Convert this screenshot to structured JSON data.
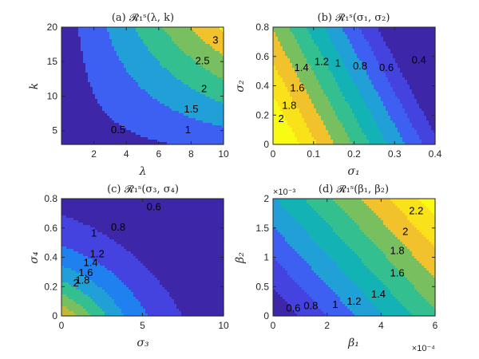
{
  "colors": {
    "colormap": [
      "#3e26a8",
      "#4443e0",
      "#3d5ff2",
      "#1f80f0",
      "#21a0d7",
      "#13b2b5",
      "#33bf90",
      "#78c05f",
      "#c2b93b",
      "#f2c22c",
      "#f9e21a",
      "#f9fb15"
    ],
    "axis": "#262626",
    "contour_line": "#000000"
  },
  "chart_data": [
    {
      "type": "heatmap",
      "panel": "a",
      "title": "(a) 𝓡₁ˢ(λ, k)",
      "xlabel": "λ",
      "ylabel": "k",
      "xlim": [
        0,
        10
      ],
      "ylim": [
        3,
        20
      ],
      "xticks": [
        2,
        4,
        6,
        8,
        10
      ],
      "yticks": [
        5,
        10,
        15,
        20
      ],
      "x_exponent": "",
      "y_exponent": "",
      "levels": [
        0.5,
        1,
        1.5,
        2,
        2.5,
        3
      ],
      "contour_labels": [
        {
          "text": "0.5",
          "x": 3.5,
          "y": 5.0
        },
        {
          "text": "1",
          "x": 7.8,
          "y": 5.0
        },
        {
          "text": "1.5",
          "x": 8.0,
          "y": 8.0
        },
        {
          "text": "2",
          "x": 8.8,
          "y": 11.0
        },
        {
          "text": "2.5",
          "x": 8.7,
          "y": 15.0
        },
        {
          "text": "3",
          "x": 9.5,
          "y": 18.0
        }
      ]
    },
    {
      "type": "heatmap",
      "panel": "b",
      "title": "(b) 𝓡₁ˢ(σ₁, σ₂)",
      "xlabel": "σ₁",
      "ylabel": "σ₂",
      "xlim": [
        0,
        0.4
      ],
      "ylim": [
        0,
        0.8
      ],
      "xticks": [
        0,
        0.1,
        0.2,
        0.3,
        0.4
      ],
      "yticks": [
        0,
        0.2,
        0.4,
        0.6,
        0.8
      ],
      "x_exponent": "",
      "y_exponent": "",
      "levels": [
        0.4,
        0.6,
        0.8,
        1,
        1.2,
        1.4,
        1.6,
        1.8,
        2
      ],
      "contour_labels": [
        {
          "text": "0.4",
          "x": 0.36,
          "y": 0.57
        },
        {
          "text": "0.6",
          "x": 0.28,
          "y": 0.52
        },
        {
          "text": "0.8",
          "x": 0.215,
          "y": 0.53
        },
        {
          "text": "1",
          "x": 0.16,
          "y": 0.55
        },
        {
          "text": "1.2",
          "x": 0.12,
          "y": 0.56
        },
        {
          "text": "1.4",
          "x": 0.07,
          "y": 0.52
        },
        {
          "text": "1.6",
          "x": 0.06,
          "y": 0.38
        },
        {
          "text": "1.8",
          "x": 0.04,
          "y": 0.26
        },
        {
          "text": "2",
          "x": 0.02,
          "y": 0.17
        }
      ]
    },
    {
      "type": "heatmap",
      "panel": "c",
      "title": "(c) 𝓡₁ˢ(σ₃, σ₄)",
      "xlabel": "σ₃",
      "ylabel": "σ₄",
      "xlim": [
        0,
        10
      ],
      "ylim": [
        0,
        0.8
      ],
      "xticks": [
        0,
        5,
        10
      ],
      "yticks": [
        0,
        0.2,
        0.4,
        0.6,
        0.8
      ],
      "x_exponent": "",
      "y_exponent": "",
      "levels": [
        0.6,
        0.8,
        1,
        1.2,
        1.4,
        1.6,
        1.8,
        2
      ],
      "contour_labels": [
        {
          "text": "0.6",
          "x": 5.7,
          "y": 0.74
        },
        {
          "text": "0.8",
          "x": 3.5,
          "y": 0.6
        },
        {
          "text": "1",
          "x": 2.0,
          "y": 0.56
        },
        {
          "text": "1.2",
          "x": 2.2,
          "y": 0.42
        },
        {
          "text": "1.4",
          "x": 1.8,
          "y": 0.36
        },
        {
          "text": "1.6",
          "x": 1.5,
          "y": 0.29
        },
        {
          "text": "1.8",
          "x": 1.3,
          "y": 0.24
        },
        {
          "text": "2",
          "x": 0.9,
          "y": 0.22
        }
      ]
    },
    {
      "type": "heatmap",
      "panel": "d",
      "title": "(d) 𝓡₁ˢ(β₁, β₂)",
      "xlabel": "β₁",
      "ylabel": "β₂",
      "xlim": [
        0,
        6
      ],
      "ylim": [
        0,
        2
      ],
      "xticks": [
        0,
        2,
        4,
        6
      ],
      "yticks": [
        0,
        0.5,
        1,
        1.5,
        2
      ],
      "x_exponent": "×10⁻⁴",
      "y_exponent": "×10⁻³",
      "levels": [
        0.6,
        0.8,
        1,
        1.2,
        1.4,
        1.6,
        1.8,
        2,
        2.2
      ],
      "contour_labels": [
        {
          "text": "0.6",
          "x": 0.75,
          "y": 0.12
        },
        {
          "text": "0.8",
          "x": 1.4,
          "y": 0.16
        },
        {
          "text": "1",
          "x": 2.3,
          "y": 0.18
        },
        {
          "text": "1.2",
          "x": 3.0,
          "y": 0.24
        },
        {
          "text": "1.4",
          "x": 3.9,
          "y": 0.36
        },
        {
          "text": "1.6",
          "x": 4.6,
          "y": 0.72
        },
        {
          "text": "1.8",
          "x": 4.6,
          "y": 1.1
        },
        {
          "text": "2",
          "x": 4.9,
          "y": 1.43
        },
        {
          "text": "2.2",
          "x": 5.3,
          "y": 1.78
        }
      ]
    }
  ]
}
